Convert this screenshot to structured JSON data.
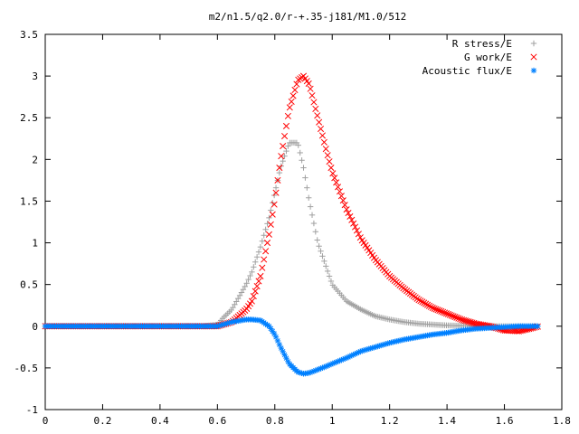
{
  "chart_data": {
    "type": "scatter",
    "title": "m2/n1.5/q2.0/r-+.35-j181/M1.0/512",
    "xlabel": "",
    "ylabel": "",
    "xlim": [
      0,
      1.8
    ],
    "ylim": [
      -1,
      3.5
    ],
    "xticks": [
      "0",
      "0.2",
      "0.4",
      "0.6",
      "0.8",
      "1",
      "1.2",
      "1.4",
      "1.6",
      "1.8"
    ],
    "yticks": [
      "-1",
      "-0.5",
      "0",
      "0.5",
      "1",
      "1.5",
      "2",
      "2.5",
      "3",
      "3.5"
    ],
    "grid": false,
    "legend_position": "top-right",
    "x": [
      0.0,
      0.1,
      0.2,
      0.3,
      0.4,
      0.5,
      0.55,
      0.6,
      0.62,
      0.65,
      0.7,
      0.72,
      0.75,
      0.78,
      0.8,
      0.82,
      0.85,
      0.88,
      0.9,
      0.92,
      0.95,
      0.98,
      1.0,
      1.05,
      1.1,
      1.15,
      1.2,
      1.25,
      1.3,
      1.35,
      1.4,
      1.45,
      1.5,
      1.55,
      1.6,
      1.65,
      1.7,
      1.72
    ],
    "series": [
      {
        "name": "R stress/E",
        "marker": "+",
        "color": "#a0a0a0",
        "values": [
          0,
          0,
          0,
          0,
          0,
          0,
          0,
          0.02,
          0.1,
          0.2,
          0.5,
          0.65,
          0.95,
          1.3,
          1.6,
          1.9,
          2.2,
          2.2,
          1.9,
          1.5,
          1.0,
          0.7,
          0.5,
          0.3,
          0.2,
          0.12,
          0.08,
          0.05,
          0.03,
          0.02,
          0.01,
          0.005,
          0,
          0,
          0,
          0,
          0,
          0
        ]
      },
      {
        "name": "G work/E",
        "marker": "x",
        "color": "#ff0000",
        "values": [
          0,
          0,
          0,
          0,
          0,
          0,
          0,
          0,
          0.02,
          0.05,
          0.2,
          0.3,
          0.6,
          1.1,
          1.5,
          2.0,
          2.6,
          2.95,
          3.0,
          2.9,
          2.5,
          2.1,
          1.85,
          1.4,
          1.05,
          0.8,
          0.6,
          0.45,
          0.32,
          0.22,
          0.15,
          0.08,
          0.03,
          0,
          -0.05,
          -0.06,
          -0.02,
          0
        ]
      },
      {
        "name": "Acoustic flux/E",
        "marker": "*",
        "color": "#0080ff",
        "values": [
          0,
          0,
          0,
          0,
          0,
          0,
          0,
          0,
          0.02,
          0.05,
          0.08,
          0.08,
          0.07,
          0.0,
          -0.1,
          -0.25,
          -0.45,
          -0.55,
          -0.57,
          -0.56,
          -0.52,
          -0.48,
          -0.45,
          -0.38,
          -0.3,
          -0.25,
          -0.2,
          -0.16,
          -0.13,
          -0.1,
          -0.08,
          -0.05,
          -0.03,
          -0.02,
          -0.01,
          0.0,
          0.0,
          0.0
        ]
      }
    ]
  }
}
